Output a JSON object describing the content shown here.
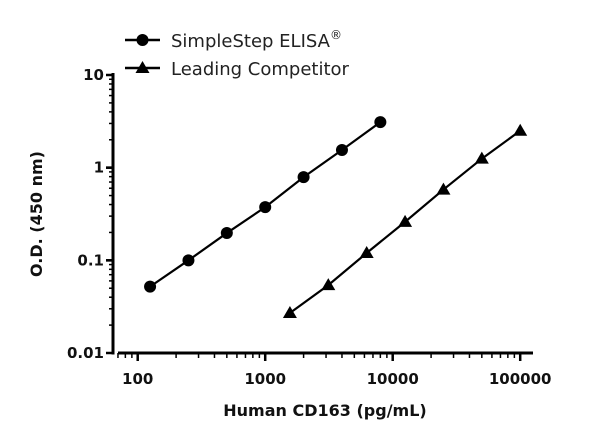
{
  "chart_data": {
    "type": "line",
    "xlabel": "Human CD163 (pg/mL)",
    "ylabel": "O.D. (450 nm)",
    "xscale": "log",
    "yscale": "log",
    "xlim": [
      64,
      126000
    ],
    "ylim": [
      0.01,
      10
    ],
    "xticks": [
      100,
      1000,
      10000,
      100000
    ],
    "xtick_labels": [
      "100",
      "1000",
      "10000",
      "100000"
    ],
    "yticks": [
      0.01,
      0.1,
      1,
      10
    ],
    "ytick_labels": [
      "0.01",
      "0.1",
      "1",
      "10"
    ],
    "grid": false,
    "legend_placement": "top-left",
    "series": [
      {
        "name": "SimpleStep ELISA",
        "name_superscript": "®",
        "marker": "circle",
        "color": "#000000",
        "x": [
          125,
          250,
          500,
          1000,
          2000,
          4000,
          8000
        ],
        "y": [
          0.052,
          0.1,
          0.197,
          0.375,
          0.79,
          1.55,
          3.1
        ]
      },
      {
        "name": "Leading Competitor",
        "marker": "triangle",
        "color": "#000000",
        "x": [
          1562.5,
          3125,
          6250,
          12500,
          25000,
          50000,
          100000
        ],
        "y": [
          0.027,
          0.054,
          0.12,
          0.26,
          0.58,
          1.25,
          2.5
        ]
      }
    ]
  }
}
